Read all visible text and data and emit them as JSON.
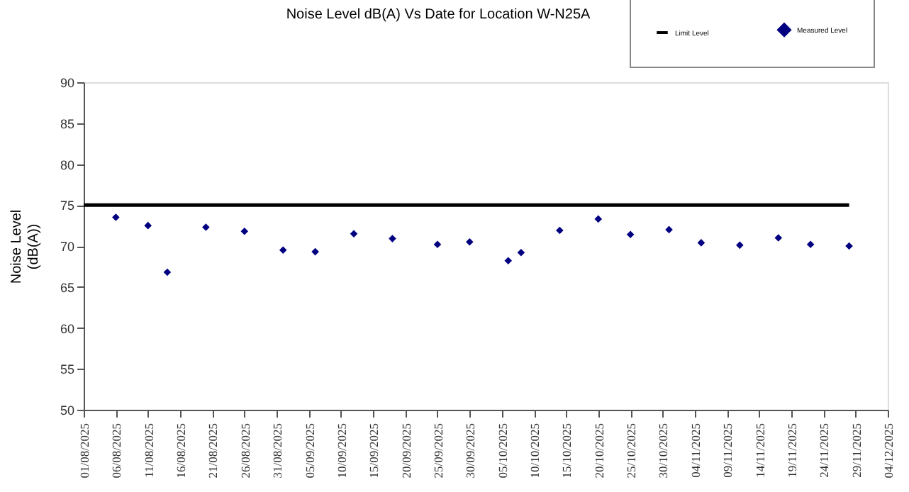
{
  "chart_data": {
    "type": "scatter",
    "title": "Noise Level dB(A) Vs Date for Location W-N25A",
    "ylabel": "Noise Level\n(dB(A))",
    "series": [
      {
        "name": "Limit Level",
        "type": "line",
        "color": "#000000",
        "marker": "none",
        "line_style": "solid",
        "x": [
          "2025-08-01",
          "2025-11-28"
        ],
        "values": [
          75,
          75
        ]
      },
      {
        "name": "Measured Level",
        "type": "scatter",
        "color": "#000080",
        "marker": "diamond",
        "x": [
          "2025-08-06",
          "2025-08-11",
          "2025-08-14",
          "2025-08-20",
          "2025-08-26",
          "2025-09-01",
          "2025-09-06",
          "2025-09-12",
          "2025-09-18",
          "2025-09-25",
          "2025-09-30",
          "2025-10-06",
          "2025-10-08",
          "2025-10-14",
          "2025-10-20",
          "2025-10-25",
          "2025-10-31",
          "2025-11-05",
          "2025-11-11",
          "2025-11-17",
          "2025-11-22",
          "2025-11-28"
        ],
        "values": [
          73.5,
          72.5,
          66.8,
          72.3,
          71.8,
          69.5,
          69.3,
          71.5,
          70.9,
          70.2,
          70.5,
          68.2,
          69.2,
          71.9,
          73.3,
          71.4,
          72.0,
          70.4,
          70.1,
          71.0,
          70.2,
          70.0
        ]
      }
    ],
    "xlim": [
      "2025-08-01",
      "2025-12-04"
    ],
    "xticks": [
      {
        "value": "2025-08-01",
        "label": "01/08/2025"
      },
      {
        "value": "2025-08-06",
        "label": "06/08/2025"
      },
      {
        "value": "2025-08-11",
        "label": "11/08/2025"
      },
      {
        "value": "2025-08-16",
        "label": "16/08/2025"
      },
      {
        "value": "2025-08-21",
        "label": "21/08/2025"
      },
      {
        "value": "2025-08-26",
        "label": "26/08/2025"
      },
      {
        "value": "2025-08-31",
        "label": "31/08/2025"
      },
      {
        "value": "2025-09-05",
        "label": "05/09/2025"
      },
      {
        "value": "2025-09-10",
        "label": "10/09/2025"
      },
      {
        "value": "2025-09-15",
        "label": "15/09/2025"
      },
      {
        "value": "2025-09-20",
        "label": "20/09/2025"
      },
      {
        "value": "2025-09-25",
        "label": "25/09/2025"
      },
      {
        "value": "2025-09-30",
        "label": "30/09/2025"
      },
      {
        "value": "2025-10-05",
        "label": "05/10/2025"
      },
      {
        "value": "2025-10-10",
        "label": "10/10/2025"
      },
      {
        "value": "2025-10-15",
        "label": "15/10/2025"
      },
      {
        "value": "2025-10-20",
        "label": "20/10/2025"
      },
      {
        "value": "2025-10-25",
        "label": "25/10/2025"
      },
      {
        "value": "2025-10-30",
        "label": "30/10/2025"
      },
      {
        "value": "2025-11-04",
        "label": "04/11/2025"
      },
      {
        "value": "2025-11-09",
        "label": "09/11/2025"
      },
      {
        "value": "2025-11-14",
        "label": "14/11/2025"
      },
      {
        "value": "2025-11-19",
        "label": "19/11/2025"
      },
      {
        "value": "2025-11-24",
        "label": "24/11/2025"
      },
      {
        "value": "2025-11-29",
        "label": "29/11/2025"
      },
      {
        "value": "2025-12-04",
        "label": "04/12/2025"
      }
    ],
    "ylim": [
      50,
      90
    ],
    "yticks": [
      50,
      55,
      60,
      65,
      70,
      75,
      80,
      85,
      90
    ],
    "grid": false,
    "legend": "top right"
  }
}
